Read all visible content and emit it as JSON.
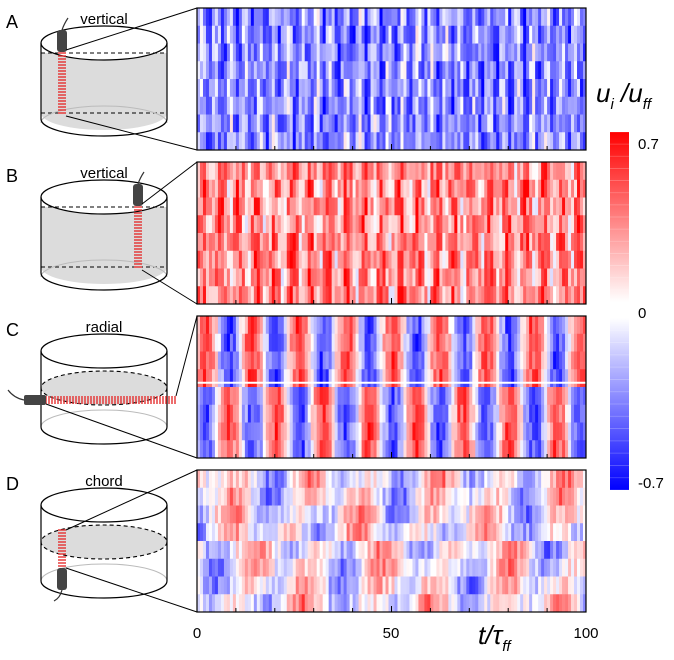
{
  "panels": [
    {
      "letter": "A",
      "probe_label": "vertical",
      "mode": "v-neg"
    },
    {
      "letter": "B",
      "probe_label": "vertical",
      "mode": "v-pos"
    },
    {
      "letter": "C",
      "probe_label": "radial",
      "mode": "radial"
    },
    {
      "letter": "D",
      "probe_label": "chord",
      "mode": "chord"
    }
  ],
  "colorbar": {
    "label_u": "u",
    "label_i": "i",
    "label_slash": " /",
    "label_u2": "u",
    "label_ff": "ff",
    "max_label": "0.7",
    "zero_label": "0",
    "min_label": "-0.7",
    "colors": {
      "positive": "#ff0000",
      "negative": "#0000ff",
      "neutral": "#ffffff"
    }
  },
  "x_axis": {
    "ticks": [
      "0",
      "50",
      "100"
    ],
    "range": [
      0,
      100
    ],
    "label_t": "t",
    "label_slash": "/",
    "label_tau": "τ",
    "label_ff": "ff"
  }
}
